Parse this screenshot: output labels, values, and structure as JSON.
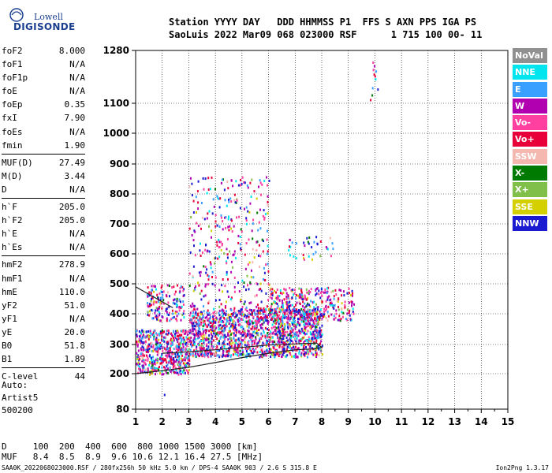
{
  "logo": {
    "line1": "Lowell",
    "line2": "DIGISONDE"
  },
  "header": {
    "line1": "Station YYYY DAY   DDD HHMMSS P1  FFS S AXN PPS IGA PS",
    "line2": "SaoLuis 2022 Mar09 068 023000 RSF      1 715 100 00- 11"
  },
  "params": [
    {
      "label": "foF2",
      "value": "8.000"
    },
    {
      "label": "foF1",
      "value": "N/A"
    },
    {
      "label": "foF1p",
      "value": "N/A"
    },
    {
      "label": "foE",
      "value": "N/A"
    },
    {
      "label": "foEp",
      "value": "0.35"
    },
    {
      "label": "fxI",
      "value": "7.90"
    },
    {
      "label": "foEs",
      "value": "N/A"
    },
    {
      "label": "fmin",
      "value": "1.90"
    },
    {
      "label": "MUF(D)",
      "value": "27.49"
    },
    {
      "label": "M(D)",
      "value": "3.44"
    },
    {
      "label": "D",
      "value": "N/A"
    },
    {
      "label": "h`F",
      "value": "205.0"
    },
    {
      "label": "h`F2",
      "value": "205.0"
    },
    {
      "label": "h`E",
      "value": "N/A"
    },
    {
      "label": "h`Es",
      "value": "N/A"
    },
    {
      "label": "hmF2",
      "value": "278.9"
    },
    {
      "label": "hmF1",
      "value": "N/A"
    },
    {
      "label": "hmE",
      "value": "110.0"
    },
    {
      "label": "yF2",
      "value": "51.0"
    },
    {
      "label": "yF1",
      "value": "N/A"
    },
    {
      "label": "yE",
      "value": "20.0"
    },
    {
      "label": "B0",
      "value": "51.8"
    },
    {
      "label": "B1",
      "value": "1.89"
    },
    {
      "label": "C-level",
      "value": "44"
    }
  ],
  "auto": {
    "line1": "Auto:",
    "line2": "Artist5",
    "line3": "500200"
  },
  "footer": {
    "d_row": "D     100  200  400  600  800 1000 1500 3000 [km]",
    "muf_row": "MUF   8.4  8.5  8.9  9.6 10.6 12.1 16.4 27.5 [MHz]",
    "file_line": "SAA0K_2022068023000.RSF / 280fx256h 50 kHz 5.0 km / DPS-4 SAA0K 903 / 2.6 S 315.8 E",
    "version": "Ion2Png 1.3.17"
  },
  "legend": [
    {
      "label": "NoVal",
      "color": "#909090"
    },
    {
      "label": "NNE",
      "color": "#00e5ee"
    },
    {
      "label": "E",
      "color": "#3aa0ff"
    },
    {
      "label": "W",
      "color": "#b000b0"
    },
    {
      "label": "Vo-",
      "color": "#ff40a0"
    },
    {
      "label": "Vo+",
      "color": "#e8003a"
    },
    {
      "label": "SSW",
      "color": "#f4b8b0"
    },
    {
      "label": "X-",
      "color": "#007a00"
    },
    {
      "label": "X+",
      "color": "#7fbf4a"
    },
    {
      "label": "SSE",
      "color": "#d4d000"
    },
    {
      "label": "NNW",
      "color": "#1a1ad0"
    }
  ],
  "chart_data": {
    "type": "scatter",
    "title": "",
    "xlabel": "",
    "ylabel": "",
    "xlim": [
      1,
      15
    ],
    "ylim": [
      80,
      1280
    ],
    "x_ticks": [
      1,
      2,
      3,
      4,
      5,
      6,
      7,
      8,
      9,
      10,
      11,
      12,
      13,
      14,
      15
    ],
    "y_ticks": [
      80,
      200,
      300,
      400,
      500,
      600,
      700,
      800,
      900,
      1000,
      1100,
      1280
    ],
    "grid": true,
    "legend_position": "right",
    "trace_curves": [
      {
        "name": "",
        "points": [
          [
            1.0,
            200
          ],
          [
            2.0,
            210
          ],
          [
            3.0,
            222
          ],
          [
            4.0,
            238
          ],
          [
            5.0,
            255
          ],
          [
            6.0,
            270
          ],
          [
            7.0,
            282
          ],
          [
            7.7,
            285
          ],
          [
            8.0,
            290
          ],
          [
            7.8,
            305
          ],
          [
            7.0,
            302
          ],
          [
            6.0,
            298
          ],
          [
            5.0,
            290
          ],
          [
            4.0,
            282
          ],
          [
            3.0,
            275
          ],
          [
            2.0,
            270
          ]
        ]
      },
      {
        "name": "",
        "points": [
          [
            1.0,
            490
          ],
          [
            1.4,
            470
          ],
          [
            2.0,
            440
          ],
          [
            2.4,
            420
          ]
        ]
      }
    ],
    "scatter_regions": [
      {
        "x": [
          1.0,
          3.0
        ],
        "y": [
          200,
          350
        ],
        "density": "high"
      },
      {
        "x": [
          3.0,
          8.0
        ],
        "y": [
          260,
          420
        ],
        "density": "high"
      },
      {
        "x": [
          6.0,
          9.2
        ],
        "y": [
          380,
          490
        ],
        "density": "medium"
      },
      {
        "x": [
          3.0,
          6.0
        ],
        "y": [
          420,
          860
        ],
        "density": "low"
      },
      {
        "x": [
          6.7,
          8.5
        ],
        "y": [
          580,
          660
        ],
        "density": "low"
      },
      {
        "x": [
          1.4,
          2.8
        ],
        "y": [
          380,
          500
        ],
        "density": "medium"
      },
      {
        "x": [
          1.8,
          2.2
        ],
        "y": [
          130,
          135
        ],
        "density": "low"
      },
      {
        "x": [
          9.8,
          10.1
        ],
        "y": [
          1100,
          1250
        ],
        "density": "low"
      }
    ]
  }
}
